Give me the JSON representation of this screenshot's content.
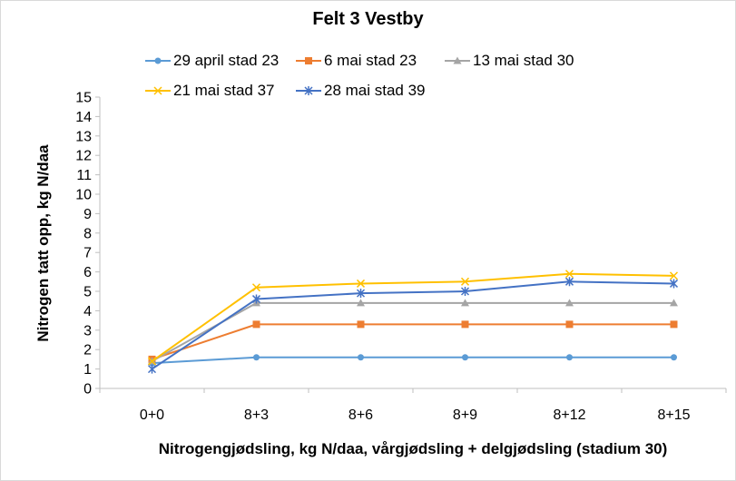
{
  "chart_data": {
    "type": "line",
    "title": "Felt 3 Vestby",
    "xlabel": "Nitrogengjødsling, kg N/daa, vårgjødsling + delgjødsling (stadium 30)",
    "ylabel": "Nitrogen tatt opp, kg N/daa",
    "categories": [
      "0+0",
      "8+3",
      "8+6",
      "8+9",
      "8+12",
      "8+15"
    ],
    "ylim": [
      0,
      15
    ],
    "yticks": [
      "0",
      "1",
      "2",
      "3",
      "4",
      "5",
      "6",
      "7",
      "8",
      "9",
      "10",
      "11",
      "12",
      "13",
      "14",
      "15"
    ],
    "grid": false,
    "legend_position": "top",
    "series": [
      {
        "name": "29 april stad 23",
        "color": "#5b9bd5",
        "marker": "circle",
        "values": [
          1.3,
          1.6,
          1.6,
          1.6,
          1.6,
          1.6
        ]
      },
      {
        "name": "6 mai stad 23",
        "color": "#ed7d31",
        "marker": "square",
        "values": [
          1.5,
          3.3,
          3.3,
          3.3,
          3.3,
          3.3
        ]
      },
      {
        "name": "13 mai stad 30",
        "color": "#a5a5a5",
        "marker": "triangle",
        "values": [
          1.4,
          4.4,
          4.4,
          4.4,
          4.4,
          4.4
        ]
      },
      {
        "name": "21 mai stad 37",
        "color": "#ffc000",
        "marker": "x",
        "values": [
          1.4,
          5.2,
          5.4,
          5.5,
          5.9,
          5.8
        ]
      },
      {
        "name": "28 mai stad 39",
        "color": "#4472c4",
        "marker": "star",
        "values": [
          1.0,
          4.6,
          4.9,
          5.0,
          5.5,
          5.4
        ]
      }
    ]
  }
}
